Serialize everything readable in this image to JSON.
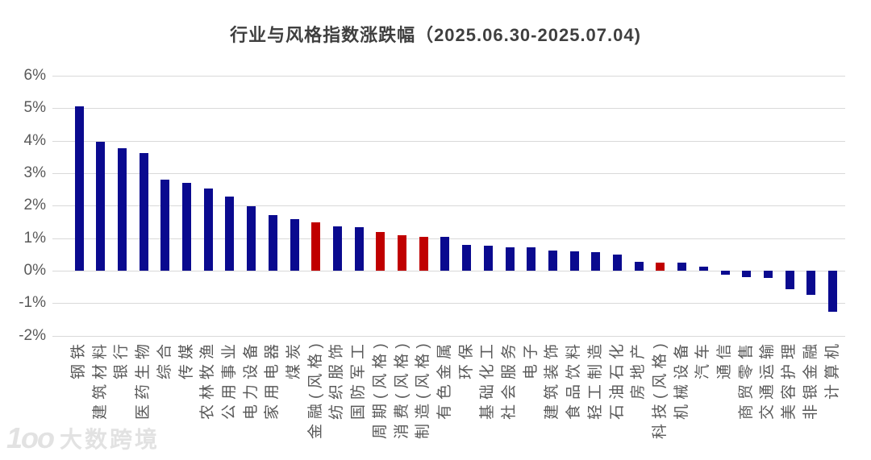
{
  "page": {
    "background": "#ffffff"
  },
  "watermark": {
    "logo": "1oo",
    "text": "大数跨境"
  },
  "chart_data": {
    "type": "bar",
    "title": "行业与风格指数涨跌幅（2025.06.30-2025.07.04)",
    "xlabel": "",
    "ylabel": "",
    "ylim": [
      -2,
      6
    ],
    "grid": true,
    "legend": "none",
    "ytick_labels": [
      "6%",
      "5%",
      "4%",
      "3%",
      "2%",
      "1%",
      "0%",
      "-1%",
      "-2%"
    ],
    "ytick_values": [
      6,
      5,
      4,
      3,
      2,
      1,
      0,
      -1,
      -2
    ],
    "bar_color_industry": "#0a0a8f",
    "bar_color_style_index": "#c00000",
    "categories": [
      "钢铁",
      "建筑材料",
      "银行",
      "医药生物",
      "综合",
      "传媒",
      "农林牧渔",
      "公用事业",
      "电力设备",
      "家用电器",
      "煤炭",
      "金融(风格)",
      "纺织服饰",
      "国防军工",
      "周期(风格)",
      "消费(风格)",
      "制造(风格)",
      "有色金属",
      "环保",
      "基础化工",
      "社会服务",
      "电子",
      "建筑装饰",
      "食品饮料",
      "轻工制造",
      "石油石化",
      "房地产",
      "科技(风格)",
      "机械设备",
      "汽车",
      "通信",
      "商贸零售",
      "交通运输",
      "美容护理",
      "非银金融",
      "计算机"
    ],
    "values": [
      5.05,
      3.97,
      3.77,
      3.63,
      2.81,
      2.71,
      2.53,
      2.27,
      1.98,
      1.71,
      1.6,
      1.48,
      1.37,
      1.35,
      1.18,
      1.08,
      1.05,
      1.03,
      0.79,
      0.78,
      0.72,
      0.71,
      0.62,
      0.6,
      0.57,
      0.5,
      0.27,
      0.26,
      0.25,
      0.12,
      -0.13,
      -0.21,
      -0.23,
      -0.56,
      -0.74,
      -1.27
    ],
    "colors": [
      "#0a0a8f",
      "#0a0a8f",
      "#0a0a8f",
      "#0a0a8f",
      "#0a0a8f",
      "#0a0a8f",
      "#0a0a8f",
      "#0a0a8f",
      "#0a0a8f",
      "#0a0a8f",
      "#0a0a8f",
      "#c00000",
      "#0a0a8f",
      "#0a0a8f",
      "#c00000",
      "#c00000",
      "#c00000",
      "#0a0a8f",
      "#0a0a8f",
      "#0a0a8f",
      "#0a0a8f",
      "#0a0a8f",
      "#0a0a8f",
      "#0a0a8f",
      "#0a0a8f",
      "#0a0a8f",
      "#0a0a8f",
      "#c00000",
      "#0a0a8f",
      "#0a0a8f",
      "#0a0a8f",
      "#0a0a8f",
      "#0a0a8f",
      "#0a0a8f",
      "#0a0a8f",
      "#0a0a8f"
    ]
  }
}
